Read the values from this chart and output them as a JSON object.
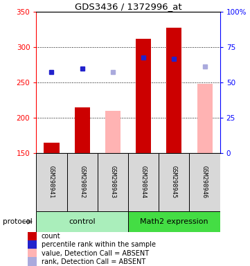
{
  "title": "GDS3436 / 1372996_at",
  "samples": [
    "GSM298941",
    "GSM298942",
    "GSM298943",
    "GSM298944",
    "GSM298945",
    "GSM298946"
  ],
  "bar_values": [
    165,
    215,
    null,
    312,
    328,
    null
  ],
  "bar_values_absent": [
    null,
    null,
    210,
    null,
    null,
    248
  ],
  "rank_values": [
    265,
    270,
    null,
    285,
    283,
    null
  ],
  "rank_values_absent": [
    null,
    null,
    265,
    null,
    null,
    273
  ],
  "ylim_left": [
    150,
    350
  ],
  "ylim_right": [
    0,
    100
  ],
  "yticks_left": [
    150,
    200,
    250,
    300,
    350
  ],
  "yticks_right": [
    0,
    25,
    50,
    75,
    100
  ],
  "bar_color_present": "#cc0000",
  "bar_color_absent": "#ffb3b3",
  "rank_color_present": "#2222cc",
  "rank_color_absent": "#aaaadd",
  "ctrl_color_light": "#aaeebb",
  "ctrl_color_dark": "#44cc66",
  "math_color": "#44dd44",
  "bar_width": 0.5,
  "protocol_label": "protocol",
  "legend_items": [
    {
      "label": "count",
      "color": "#cc0000"
    },
    {
      "label": "percentile rank within the sample",
      "color": "#2222cc"
    },
    {
      "label": "value, Detection Call = ABSENT",
      "color": "#ffb3b3"
    },
    {
      "label": "rank, Detection Call = ABSENT",
      "color": "#aaaadd"
    }
  ],
  "figsize": [
    3.61,
    3.84
  ],
  "dpi": 100
}
